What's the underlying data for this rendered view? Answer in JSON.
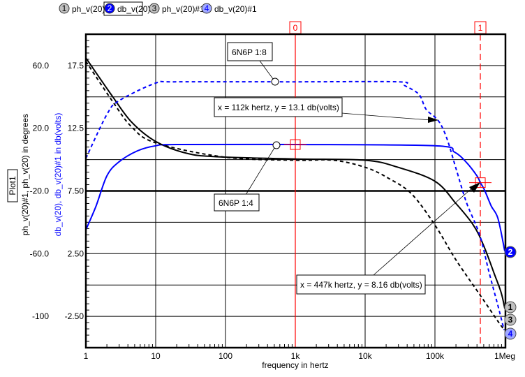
{
  "legend": [
    {
      "num": "1",
      "label": "ph_v(20)",
      "fill": "#c0c0c0",
      "text_color": "#000000"
    },
    {
      "num": "2",
      "label": "db_v(20)",
      "fill": "#0000ff",
      "text_color": "#ffffff",
      "selected": true
    },
    {
      "num": "3",
      "label": "ph_v(20)#1",
      "fill": "#c0c0c0",
      "text_color": "#000000"
    },
    {
      "num": "4",
      "label": "db_v(20)#1",
      "fill": "#a0a8ff",
      "text_color": "#0000ff"
    }
  ],
  "plot_name": "Plot1",
  "cursors": [
    {
      "label": "0",
      "freq": 1000,
      "style": "solid"
    },
    {
      "label": "1",
      "freq": 447000,
      "style": "dashed"
    }
  ],
  "annotations": {
    "label_18": "6N6P 1:8",
    "label_14": "6N6P 1:4",
    "readout_1": "x = 112k hertz, y = 13.1 db(volts)",
    "readout_2": "x = 447k hertz, y = 8.16 db(volts)"
  },
  "chart_data": {
    "type": "line",
    "xlabel": "frequency in hertz",
    "xscale": "log",
    "xlim": [
      1,
      1000000
    ],
    "x_ticks": [
      "1",
      "10",
      "100",
      "1k",
      "10k",
      "100k",
      "1Meg"
    ],
    "ylabel_left": "ph_v(20)#1, ph_v(20) in degrees",
    "ylabel_right": "db_v(20), db_v(20)#1 in db(volts)",
    "y_deg_lim": [
      -120,
      80
    ],
    "y_db_lim": [
      -5,
      20
    ],
    "y_deg_ticks": [
      "60.0",
      "20.0",
      "-20.0",
      "-60.0",
      "-100"
    ],
    "y_db_ticks": [
      "17.5",
      "12.5",
      "7.50",
      "2.50",
      "-2.50"
    ],
    "grid": true,
    "colors": {
      "phase": "#000000",
      "db": "#0000ff",
      "cursor": "#ff0000"
    },
    "series": [
      {
        "name": "ph_v(20)",
        "num": "1",
        "axis": "deg",
        "color": "#000000",
        "dash": false,
        "x": [
          1,
          2.4,
          4.5,
          10,
          28,
          79,
          1000,
          10000,
          29500,
          100000,
          200000,
          355000,
          500000,
          710000,
          890000,
          1000000
        ],
        "y": [
          64.9,
          40.4,
          24,
          11.6,
          4,
          1.8,
          0.4,
          -0.4,
          -4.9,
          -13.8,
          -28,
          -41.8,
          -55,
          -73,
          -85,
          -95
        ]
      },
      {
        "name": "db_v(20)",
        "num": "2",
        "axis": "db",
        "color": "#0000ff",
        "dash": false,
        "x": [
          1,
          1.4,
          2,
          2.95,
          5.5,
          10,
          20,
          1000,
          100000,
          190000,
          280000,
          400000,
          447000,
          510000,
          640000,
          800000,
          1000000
        ],
        "y": [
          4.4,
          6.3,
          8.7,
          9.8,
          10.7,
          11.1,
          11.2,
          11.2,
          11.1,
          10.6,
          9.8,
          8.7,
          8.16,
          7.6,
          6.3,
          5.3,
          2.7
        ]
      },
      {
        "name": "ph_v(20)#1",
        "num": "3",
        "axis": "deg",
        "color": "#000000",
        "dash": true,
        "x": [
          1,
          2.4,
          4.5,
          10,
          100,
          1000,
          3500,
          10000,
          21000,
          46000,
          100000,
          200000,
          437000,
          880000,
          1000000
        ],
        "y": [
          62.7,
          37.3,
          21,
          10.7,
          1.5,
          -0.4,
          -0.4,
          -4.9,
          -11.6,
          -21.8,
          -41.8,
          -64,
          -86,
          -105.8,
          -108
        ]
      },
      {
        "name": "db_v(20)#1",
        "num": "4",
        "axis": "db",
        "color": "#0000ff",
        "dash": true,
        "x": [
          1,
          2,
          3,
          10,
          19,
          1000,
          30000,
          37000,
          59000,
          75000,
          112000,
          148000,
          200000,
          282000,
          437000,
          590000,
          794000,
          980000
        ],
        "y": [
          10.1,
          13.6,
          14.7,
          16.1,
          16.2,
          16.2,
          16.2,
          15.9,
          15.2,
          14.0,
          13.1,
          11.7,
          9.3,
          6.6,
          4.0,
          1.1,
          -1.6,
          -3.6
        ]
      }
    ]
  }
}
